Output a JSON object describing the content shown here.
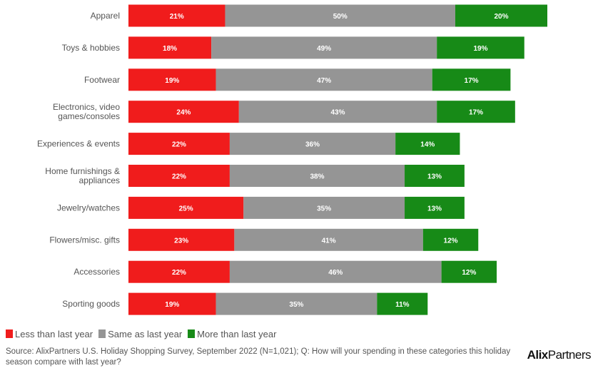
{
  "chart_data": {
    "type": "bar",
    "orientation": "horizontal",
    "stacked": true,
    "categories": [
      "Apparel",
      "Toys & hobbies",
      "Footwear",
      "Electronics, video games/consoles",
      "Experiences & events",
      "Home furnishings & appliances",
      "Jewelry/watches",
      "Flowers/misc. gifts",
      "Accessories",
      "Sporting goods"
    ],
    "category_lines": [
      [
        "Apparel"
      ],
      [
        "Toys & hobbies"
      ],
      [
        "Footwear"
      ],
      [
        "Electronics, video",
        "games/consoles"
      ],
      [
        "Experiences & events"
      ],
      [
        "Home furnishings &",
        "appliances"
      ],
      [
        "Jewelry/watches"
      ],
      [
        "Flowers/misc. gifts"
      ],
      [
        "Accessories"
      ],
      [
        "Sporting goods"
      ]
    ],
    "series": [
      {
        "name": "Less than last year",
        "color": "#f01c1c",
        "values": [
          21,
          18,
          19,
          24,
          22,
          22,
          25,
          23,
          22,
          19
        ]
      },
      {
        "name": "Same as last year",
        "color": "#959595",
        "values": [
          50,
          49,
          47,
          43,
          36,
          38,
          35,
          41,
          46,
          35
        ]
      },
      {
        "name": "More than last year",
        "color": "#178a17",
        "values": [
          20,
          19,
          17,
          17,
          14,
          13,
          13,
          12,
          12,
          11
        ]
      }
    ],
    "value_suffix": "%",
    "legend_position": "bottom-left",
    "grid": false
  },
  "footer": {
    "source": "Source: AlixPartners U.S. Holiday Shopping Survey, September 2022 (N=1,021); Q: How will your spending in these categories this holiday season compare with last year?",
    "logo_bold": "Alix",
    "logo_rest": "Partners"
  }
}
